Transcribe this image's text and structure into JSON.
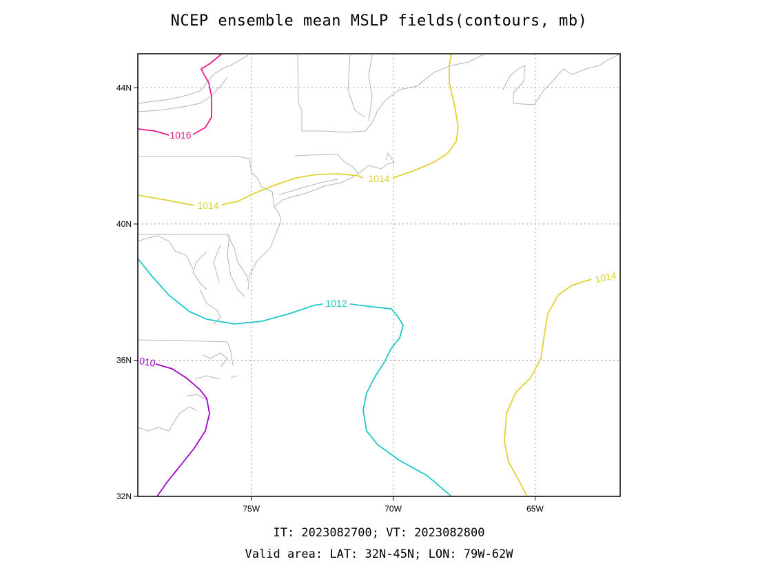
{
  "title": "NCEP ensemble mean MSLP fields(contours, mb)",
  "footer": {
    "init_valid": "IT: 2023082700; VT: 2023082800",
    "valid_area": "Valid area: LAT: 32N-45N; LON: 79W-62W"
  },
  "map": {
    "lat_range": [
      32,
      45
    ],
    "lon_range": [
      -79,
      -62
    ],
    "lat_ticks": [
      {
        "value": 32,
        "label": "32N"
      },
      {
        "value": 36,
        "label": "36N"
      },
      {
        "value": 40,
        "label": "40N"
      },
      {
        "value": 44,
        "label": "44N"
      }
    ],
    "lon_ticks": [
      {
        "value": -75,
        "label": "75W"
      },
      {
        "value": -70,
        "label": "70W"
      },
      {
        "value": -65,
        "label": "65W"
      }
    ],
    "grid": "dotted",
    "coastline_color": "#b4b4b4"
  },
  "contours": [
    {
      "level": 1016,
      "label": "1016",
      "color": "#e6198c"
    },
    {
      "level": 1014,
      "label": "1014",
      "color": "#e1d232"
    },
    {
      "level": 1014,
      "label": "1014",
      "color": "#e1d232"
    },
    {
      "level": 1014,
      "label": "1014",
      "color": "#e1d232"
    },
    {
      "level": 1012,
      "label": "1012",
      "color": "#1ec8c8"
    },
    {
      "level": 1010,
      "label": "010",
      "color": "#a000c8"
    }
  ]
}
